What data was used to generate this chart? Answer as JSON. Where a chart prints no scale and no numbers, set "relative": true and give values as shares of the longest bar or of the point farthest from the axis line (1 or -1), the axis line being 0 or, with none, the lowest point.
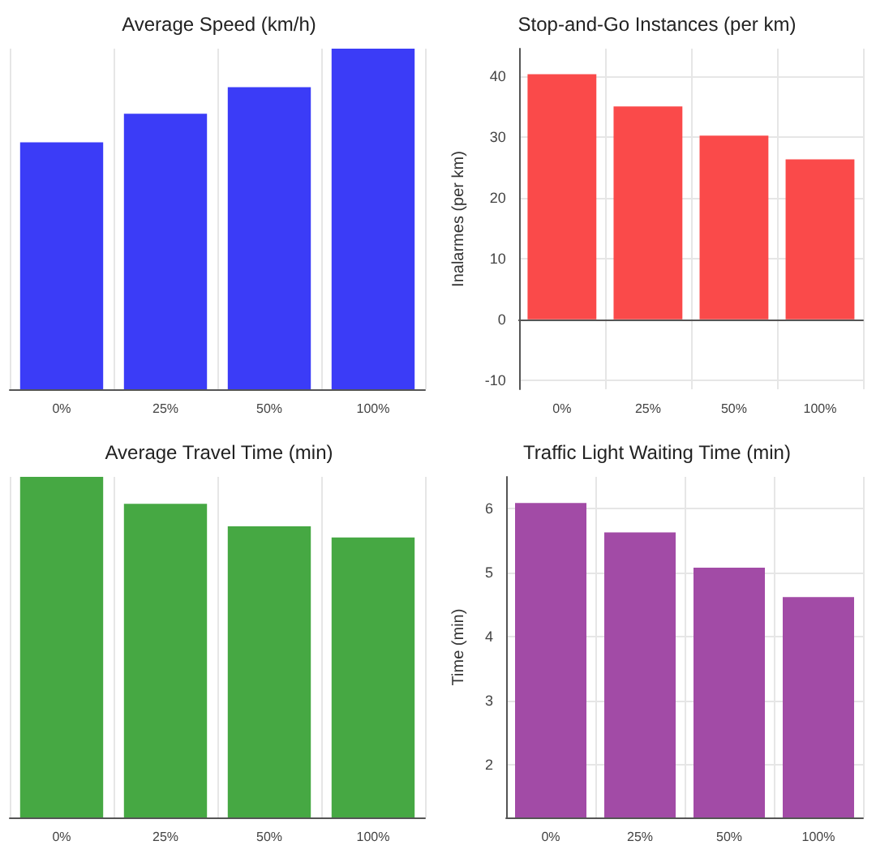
{
  "chart_data": [
    {
      "type": "bar",
      "title": "Average Speed (km/h)",
      "categories": [
        "0%",
        "25%",
        "50%",
        "100%"
      ],
      "relative": true,
      "grid": true,
      "series": [
        {
          "color": "#3b3cf7",
          "values": [
            0.725,
            0.809,
            0.887,
            1
          ]
        }
      ]
    },
    {
      "type": "bar",
      "title": "Stop-and-Go Instances (per km)",
      "ylabel": "Inalarmes (per km)",
      "categories": [
        "0%",
        "25%",
        "50%",
        "100%"
      ],
      "ylim": [
        -11.5,
        44.5
      ],
      "yticks": [
        -10,
        0,
        10,
        20,
        30,
        40
      ],
      "grid": true,
      "series": [
        {
          "color": "#fa4a4a",
          "values": [
            40.3,
            35,
            30.2,
            26.3
          ]
        }
      ]
    },
    {
      "type": "bar",
      "title": "Average Travel Time (min)",
      "categories": [
        "0%",
        "25%",
        "50%",
        "100%"
      ],
      "relative": true,
      "grid": true,
      "series": [
        {
          "color": "#46a843",
          "values": [
            1,
            0.921,
            0.855,
            0.822
          ]
        }
      ]
    },
    {
      "type": "bar",
      "title": "Traffic Light Waiting Time (min)",
      "ylabel": "Time (min)",
      "categories": [
        "0%",
        "25%",
        "50%",
        "100%"
      ],
      "ylim": [
        1.17,
        6.5
      ],
      "yticks": [
        2,
        3,
        4,
        5,
        6
      ],
      "grid": true,
      "series": [
        {
          "color": "#a24ba6",
          "values": [
            6.09,
            5.63,
            5.08,
            4.62
          ]
        }
      ]
    }
  ]
}
